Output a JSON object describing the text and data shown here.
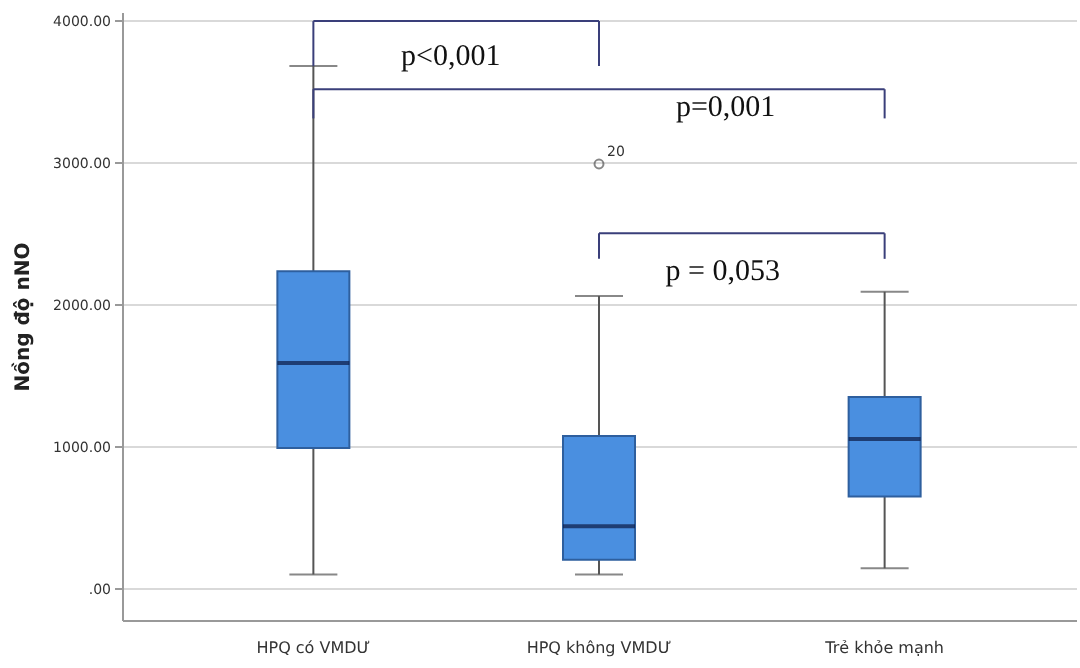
{
  "chart_data": {
    "type": "box",
    "ylabel": "Nồng độ nNO",
    "categories": [
      "HPQ có VMDƯ",
      "HPQ không VMDƯ",
      "Trẻ khỏe mạnh"
    ],
    "color": "#4a8fe0",
    "boxes": [
      {
        "low": 100,
        "q1": 990,
        "median": 1590,
        "q3": 2235,
        "high": 3680
      },
      {
        "low": 100,
        "q1": 205,
        "median": 440,
        "q3": 1075,
        "high": 2060,
        "outliers": [
          2990
        ]
      },
      {
        "low": 145,
        "q1": 650,
        "median": 1055,
        "q3": 1350,
        "high": 2090
      }
    ],
    "ylim": [
      -220,
      4060
    ],
    "yticks": [
      {
        "value": 0,
        "label": ".00"
      },
      {
        "value": 1000,
        "label": "1000.00"
      },
      {
        "value": 2000,
        "label": "2000.00"
      },
      {
        "value": 3000,
        "label": "3000.00"
      },
      {
        "value": 4000,
        "label": "4000.00"
      }
    ],
    "grid": "y",
    "annotations": [
      "p<0,001",
      "p=0,001",
      "p = 0,053",
      "20"
    ]
  }
}
